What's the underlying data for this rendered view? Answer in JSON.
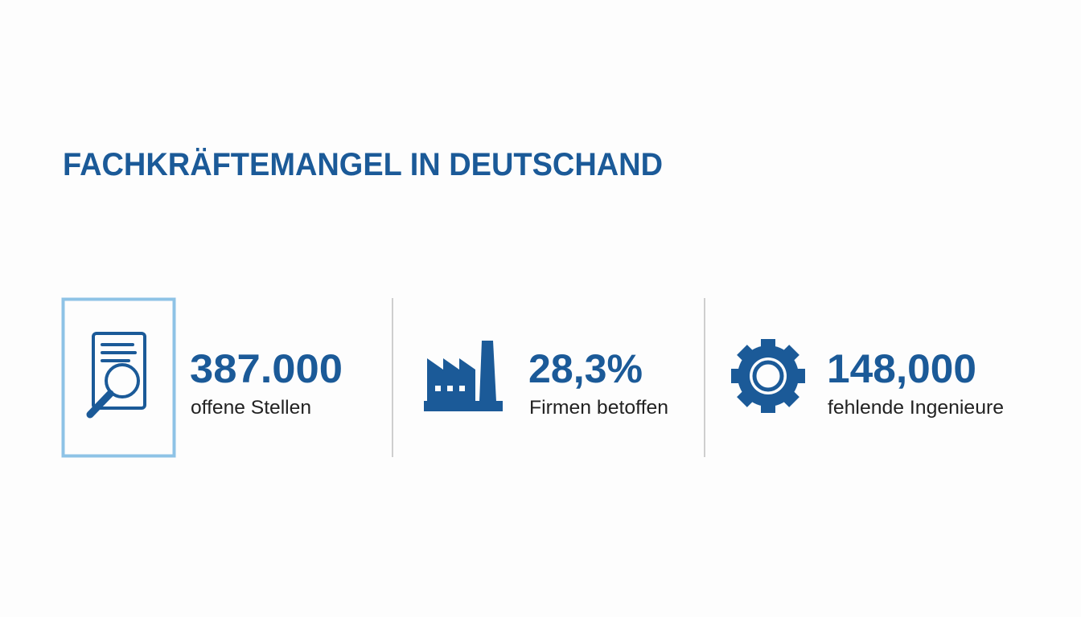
{
  "header": {
    "title": "FACHKRÄFTEMANGEL IN DEUTSCHAND"
  },
  "stats": [
    {
      "value": "387.000",
      "label": "offene Stellen"
    },
    {
      "value": "28,3%",
      "label": "Firmen betoffen"
    },
    {
      "value": "148,000",
      "label": "fehlende Ingenieure"
    }
  ]
}
